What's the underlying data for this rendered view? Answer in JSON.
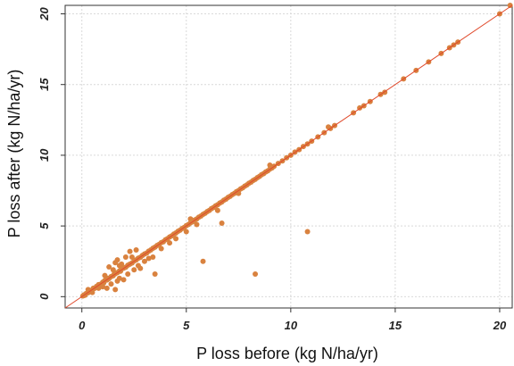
{
  "chart_data": {
    "type": "scatter",
    "title": "",
    "xlabel": "P loss before (kg N/ha/yr)",
    "ylabel": "P loss after (kg N/ha/yr)",
    "xlim": [
      -0.8,
      20.6
    ],
    "ylim": [
      -0.8,
      20.6
    ],
    "xticks": [
      0,
      5,
      10,
      15,
      20
    ],
    "yticks": [
      0,
      5,
      10,
      15,
      20
    ],
    "xtick_labels": [
      "0",
      "5",
      "10",
      "15",
      "20"
    ],
    "ytick_labels": [
      "0",
      "5",
      "10",
      "15",
      "20"
    ],
    "grid": true,
    "reference_line": {
      "type": "identity",
      "slope": 1,
      "intercept": 0,
      "color": "#e04a2c"
    },
    "point_color": "#d9823f",
    "series": [
      {
        "values": [
          [
            0.05,
            0.05
          ],
          [
            0.1,
            0.12
          ],
          [
            0.15,
            0.1
          ],
          [
            0.2,
            0.22
          ],
          [
            0.3,
            0.28
          ],
          [
            0.35,
            0.38
          ],
          [
            0.4,
            0.42
          ],
          [
            0.5,
            0.48
          ],
          [
            0.55,
            0.6
          ],
          [
            0.6,
            0.58
          ],
          [
            0.7,
            0.72
          ],
          [
            0.75,
            0.7
          ],
          [
            0.8,
            0.85
          ],
          [
            0.9,
            0.88
          ],
          [
            1.0,
            1.02
          ],
          [
            1.05,
            0.98
          ],
          [
            1.1,
            1.15
          ],
          [
            1.2,
            1.18
          ],
          [
            1.25,
            1.3
          ],
          [
            1.3,
            1.28
          ],
          [
            1.4,
            1.42
          ],
          [
            1.5,
            1.48
          ],
          [
            1.55,
            1.6
          ],
          [
            1.6,
            1.62
          ],
          [
            1.7,
            1.7
          ],
          [
            1.8,
            1.82
          ],
          [
            1.85,
            1.8
          ],
          [
            1.9,
            1.95
          ],
          [
            2.0,
            2.02
          ],
          [
            2.1,
            2.08
          ],
          [
            2.2,
            2.22
          ],
          [
            2.3,
            2.3
          ],
          [
            2.4,
            2.38
          ],
          [
            2.5,
            2.52
          ],
          [
            2.6,
            2.6
          ],
          [
            2.7,
            2.72
          ],
          [
            2.8,
            2.78
          ],
          [
            2.9,
            2.92
          ],
          [
            3.0,
            3.02
          ],
          [
            3.1,
            3.08
          ],
          [
            3.2,
            3.22
          ],
          [
            3.3,
            3.3
          ],
          [
            3.4,
            3.42
          ],
          [
            3.5,
            3.5
          ],
          [
            3.6,
            3.62
          ],
          [
            3.7,
            3.7
          ],
          [
            3.8,
            3.82
          ],
          [
            3.9,
            3.88
          ],
          [
            4.0,
            4.02
          ],
          [
            4.1,
            4.1
          ],
          [
            4.2,
            4.22
          ],
          [
            4.3,
            4.3
          ],
          [
            4.4,
            4.42
          ],
          [
            4.5,
            4.5
          ],
          [
            4.6,
            4.62
          ],
          [
            4.7,
            4.7
          ],
          [
            4.8,
            4.82
          ],
          [
            4.9,
            4.9
          ],
          [
            5.0,
            5.02
          ],
          [
            5.1,
            5.1
          ],
          [
            5.2,
            5.22
          ],
          [
            5.3,
            5.3
          ],
          [
            5.4,
            5.42
          ],
          [
            5.5,
            5.5
          ],
          [
            5.6,
            5.62
          ],
          [
            5.7,
            5.7
          ],
          [
            5.8,
            5.82
          ],
          [
            5.9,
            5.9
          ],
          [
            6.0,
            6.02
          ],
          [
            6.1,
            6.1
          ],
          [
            6.2,
            6.22
          ],
          [
            6.3,
            6.3
          ],
          [
            6.4,
            6.42
          ],
          [
            6.5,
            6.5
          ],
          [
            6.6,
            6.62
          ],
          [
            6.7,
            6.7
          ],
          [
            6.8,
            6.82
          ],
          [
            6.9,
            6.9
          ],
          [
            7.0,
            7.02
          ],
          [
            7.1,
            7.1
          ],
          [
            7.2,
            7.22
          ],
          [
            7.3,
            7.3
          ],
          [
            7.4,
            7.42
          ],
          [
            7.5,
            7.5
          ],
          [
            7.6,
            7.62
          ],
          [
            7.7,
            7.7
          ],
          [
            7.8,
            7.82
          ],
          [
            7.9,
            7.9
          ],
          [
            8.0,
            8.02
          ],
          [
            8.1,
            8.1
          ],
          [
            8.2,
            8.22
          ],
          [
            8.3,
            8.3
          ],
          [
            8.4,
            8.42
          ],
          [
            8.5,
            8.5
          ],
          [
            8.6,
            8.62
          ],
          [
            8.7,
            8.7
          ],
          [
            8.8,
            8.82
          ],
          [
            8.9,
            8.9
          ],
          [
            9.0,
            9.02
          ],
          [
            9.1,
            9.1
          ],
          [
            9.2,
            9.22
          ],
          [
            9.4,
            9.42
          ],
          [
            9.6,
            9.6
          ],
          [
            9.8,
            9.82
          ],
          [
            10.0,
            10.0
          ],
          [
            10.2,
            10.22
          ],
          [
            10.4,
            10.4
          ],
          [
            10.6,
            10.62
          ],
          [
            10.8,
            10.8
          ],
          [
            11.0,
            11.0
          ],
          [
            11.3,
            11.3
          ],
          [
            11.6,
            11.6
          ],
          [
            11.9,
            11.9
          ],
          [
            12.1,
            12.1
          ],
          [
            13.0,
            13.0
          ],
          [
            13.3,
            13.35
          ],
          [
            13.5,
            13.5
          ],
          [
            13.8,
            13.8
          ],
          [
            14.3,
            14.3
          ],
          [
            14.5,
            14.45
          ],
          [
            15.4,
            15.4
          ],
          [
            16.0,
            16.0
          ],
          [
            16.6,
            16.6
          ],
          [
            17.2,
            17.2
          ],
          [
            17.6,
            17.6
          ],
          [
            17.8,
            17.8
          ],
          [
            18.0,
            18.0
          ],
          [
            20.0,
            20.0
          ],
          [
            20.5,
            20.6
          ],
          [
            0.3,
            0.5
          ],
          [
            0.5,
            0.3
          ],
          [
            0.8,
            0.6
          ],
          [
            1.0,
            0.7
          ],
          [
            1.1,
            1.5
          ],
          [
            1.2,
            0.6
          ],
          [
            1.3,
            2.1
          ],
          [
            1.4,
            0.9
          ],
          [
            1.5,
            1.9
          ],
          [
            1.6,
            0.5
          ],
          [
            1.6,
            2.4
          ],
          [
            1.7,
            1.1
          ],
          [
            1.7,
            2.6
          ],
          [
            1.8,
            2.2
          ],
          [
            1.8,
            1.3
          ],
          [
            1.9,
            2.3
          ],
          [
            2.0,
            1.2
          ],
          [
            2.1,
            2.8
          ],
          [
            2.2,
            1.6
          ],
          [
            2.3,
            3.2
          ],
          [
            2.4,
            2.8
          ],
          [
            2.5,
            1.9
          ],
          [
            2.6,
            3.3
          ],
          [
            2.7,
            2.2
          ],
          [
            2.8,
            2.0
          ],
          [
            3.0,
            2.5
          ],
          [
            3.2,
            2.7
          ],
          [
            3.4,
            2.8
          ],
          [
            3.5,
            1.6
          ],
          [
            3.8,
            3.4
          ],
          [
            4.2,
            3.8
          ],
          [
            4.5,
            4.1
          ],
          [
            5.0,
            4.6
          ],
          [
            5.2,
            5.5
          ],
          [
            5.5,
            5.1
          ],
          [
            5.8,
            2.5
          ],
          [
            6.5,
            6.1
          ],
          [
            6.7,
            5.2
          ],
          [
            7.5,
            7.3
          ],
          [
            8.3,
            1.6
          ],
          [
            9.0,
            9.3
          ],
          [
            10.8,
            4.6
          ],
          [
            11.8,
            12.0
          ]
        ]
      }
    ]
  }
}
